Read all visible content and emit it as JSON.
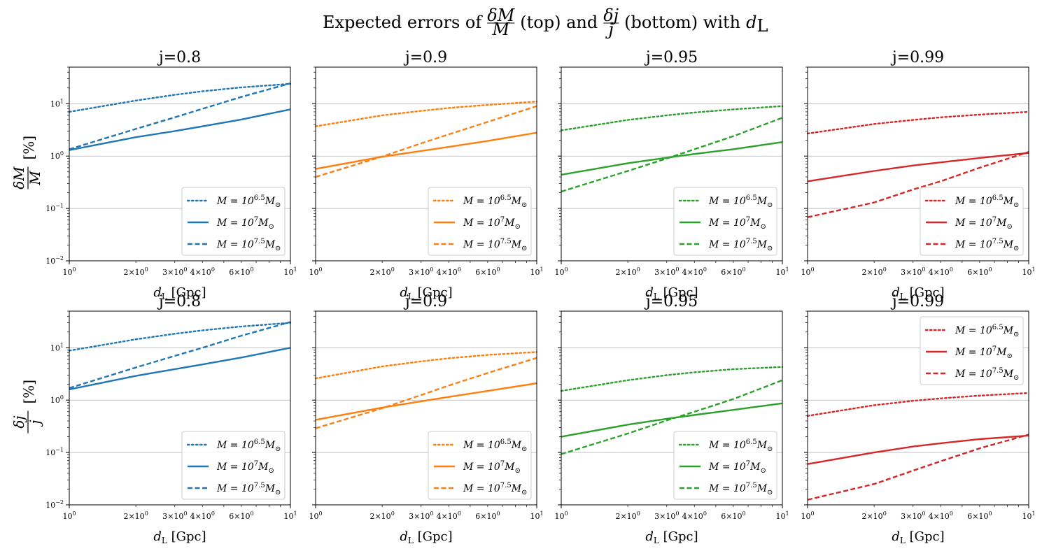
{
  "figure": {
    "title_main": "Expected errors of",
    "title_frac_top_num": "δM",
    "title_frac_top_den": "M",
    "title_mid_text": "(top) and",
    "title_frac_bot_num": "δj",
    "title_frac_bot_den": "j",
    "title_end_text": "(bottom) with",
    "title_var": "d",
    "title_var_sub": "L"
  },
  "rows": [
    {
      "ylabel_num": "δM",
      "ylabel_den": "M",
      "ylabel_unit": "[%]"
    },
    {
      "ylabel_num": "δj",
      "ylabel_den": "j",
      "ylabel_unit": "[%]"
    }
  ],
  "x_axis": {
    "label_var": "d",
    "label_sub": "L",
    "label_unit": "[Gpc]",
    "tick_labels": [
      {
        "value": 1,
        "base": "10",
        "exp": "0"
      },
      {
        "value": 2,
        "base": "2×10",
        "exp": "0"
      },
      {
        "value": 3,
        "base": "3×10",
        "exp": "0"
      },
      {
        "value": 4,
        "base": "4×10",
        "exp": "0"
      },
      {
        "value": 6,
        "base": "6×10",
        "exp": "0"
      },
      {
        "value": 10,
        "base": "10",
        "exp": "1"
      }
    ]
  },
  "y_axis": {
    "tick_labels": [
      {
        "value": 0.01,
        "base": "10",
        "exp": "−2"
      },
      {
        "value": 0.1,
        "base": "10",
        "exp": "−1"
      },
      {
        "value": 1,
        "base": "10",
        "exp": "0"
      },
      {
        "value": 10,
        "base": "10",
        "exp": "1"
      }
    ]
  },
  "legend_entries": [
    {
      "style": "dotted",
      "prefix": "M = 10",
      "exp": "6.5",
      "suffix": "M",
      "sub": "⊙"
    },
    {
      "style": "solid",
      "prefix": "M = 10",
      "exp": "7",
      "suffix": "M",
      "sub": "⊙"
    },
    {
      "style": "dashed",
      "prefix": "M = 10",
      "exp": "7.5",
      "suffix": "M",
      "sub": "⊙"
    }
  ],
  "colors": {
    "j=0.8": "#1f77b4",
    "j=0.9": "#ff7f0e",
    "j=0.95": "#2ca02c",
    "j=0.99": "#d62728",
    "grid": "#b0b0b0"
  },
  "chart_data": [
    {
      "type": "line",
      "title": "j=0.8",
      "row": "top",
      "quantity": "δM/M",
      "xlabel": "d_L [Gpc]",
      "ylabel": "δM/M [%]",
      "xscale": "log",
      "yscale": "log",
      "xlim": [
        1,
        10
      ],
      "ylim": [
        0.01,
        50
      ],
      "grid": "y-major",
      "legend": "lower right",
      "color": "#1f77b4",
      "x": [
        1,
        2,
        3,
        4,
        6,
        10
      ],
      "series": [
        {
          "name": "M=10^6.5 M_sun",
          "style": "dotted",
          "values": [
            7.0,
            11.5,
            14.8,
            17.3,
            20.5,
            24.0
          ]
        },
        {
          "name": "M=10^7 M_sun",
          "style": "solid",
          "values": [
            1.3,
            2.3,
            3.0,
            3.7,
            5.0,
            7.8
          ]
        },
        {
          "name": "M=10^7.5 M_sun",
          "style": "dashed",
          "values": [
            1.35,
            3.3,
            5.5,
            8.0,
            13.5,
            24.5
          ]
        }
      ]
    },
    {
      "type": "line",
      "title": "j=0.9",
      "row": "top",
      "quantity": "δM/M",
      "xlabel": "d_L [Gpc]",
      "ylabel": "δM/M [%]",
      "xscale": "log",
      "yscale": "log",
      "xlim": [
        1,
        10
      ],
      "ylim": [
        0.01,
        50
      ],
      "grid": "y-major",
      "legend": "lower right",
      "color": "#ff7f0e",
      "x": [
        1,
        2,
        3,
        4,
        6,
        10
      ],
      "series": [
        {
          "name": "M=10^6.5 M_sun",
          "style": "dotted",
          "values": [
            3.7,
            6.0,
            7.3,
            8.3,
            9.5,
            11.0
          ]
        },
        {
          "name": "M=10^7 M_sun",
          "style": "solid",
          "values": [
            0.57,
            0.97,
            1.25,
            1.5,
            1.95,
            2.8
          ]
        },
        {
          "name": "M=10^7.5 M_sun",
          "style": "dashed",
          "values": [
            0.4,
            0.98,
            1.75,
            2.6,
            4.5,
            9.0
          ]
        }
      ]
    },
    {
      "type": "line",
      "title": "j=0.95",
      "row": "top",
      "quantity": "δM/M",
      "xlabel": "d_L [Gpc]",
      "ylabel": "δM/M [%]",
      "xscale": "log",
      "yscale": "log",
      "xlim": [
        1,
        10
      ],
      "ylim": [
        0.01,
        50
      ],
      "grid": "y-major",
      "legend": "lower right",
      "color": "#2ca02c",
      "x": [
        1,
        2,
        3,
        4,
        6,
        10
      ],
      "series": [
        {
          "name": "M=10^6.5 M_sun",
          "style": "dotted",
          "values": [
            3.1,
            4.9,
            6.0,
            6.8,
            7.8,
            9.0
          ]
        },
        {
          "name": "M=10^7 M_sun",
          "style": "solid",
          "values": [
            0.44,
            0.73,
            0.93,
            1.1,
            1.35,
            1.85
          ]
        },
        {
          "name": "M=10^7.5 M_sun",
          "style": "dashed",
          "values": [
            0.21,
            0.52,
            0.9,
            1.35,
            2.4,
            5.4
          ]
        }
      ]
    },
    {
      "type": "line",
      "title": "j=0.99",
      "row": "top",
      "quantity": "δM/M",
      "xlabel": "d_L [Gpc]",
      "ylabel": "δM/M [%]",
      "xscale": "log",
      "yscale": "log",
      "xlim": [
        1,
        10
      ],
      "ylim": [
        0.01,
        50
      ],
      "grid": "y-major",
      "legend": "lower right",
      "color": "#d62728",
      "x": [
        1,
        2,
        3,
        4,
        6,
        10
      ],
      "series": [
        {
          "name": "M=10^6.5 M_sun",
          "style": "dotted",
          "values": [
            2.7,
            4.1,
            4.9,
            5.5,
            6.2,
            7.0
          ]
        },
        {
          "name": "M=10^7 M_sun",
          "style": "solid",
          "values": [
            0.33,
            0.52,
            0.66,
            0.76,
            0.92,
            1.15
          ]
        },
        {
          "name": "M=10^7.5 M_sun",
          "style": "dashed",
          "values": [
            0.068,
            0.13,
            0.23,
            0.33,
            0.6,
            1.2
          ]
        }
      ]
    },
    {
      "type": "line",
      "title": "j=0.8",
      "row": "bottom",
      "quantity": "δj/j",
      "xlabel": "d_L [Gpc]",
      "ylabel": "δj/j [%]",
      "xscale": "log",
      "yscale": "log",
      "xlim": [
        1,
        10
      ],
      "ylim": [
        0.01,
        50
      ],
      "grid": "y-major",
      "legend": "lower right",
      "color": "#1f77b4",
      "x": [
        1,
        2,
        3,
        4,
        6,
        10
      ],
      "series": [
        {
          "name": "M=10^6.5 M_sun",
          "style": "dotted",
          "values": [
            8.8,
            14.5,
            18.5,
            21.5,
            25.5,
            30.0
          ]
        },
        {
          "name": "M=10^7 M_sun",
          "style": "solid",
          "values": [
            1.6,
            2.9,
            3.9,
            4.8,
            6.5,
            10.0
          ]
        },
        {
          "name": "M=10^7.5 M_sun",
          "style": "dashed",
          "values": [
            1.7,
            4.2,
            7.0,
            10.0,
            17.0,
            31.0
          ]
        }
      ]
    },
    {
      "type": "line",
      "title": "j=0.9",
      "row": "bottom",
      "quantity": "δj/j",
      "xlabel": "d_L [Gpc]",
      "ylabel": "δj/j [%]",
      "xscale": "log",
      "yscale": "log",
      "xlim": [
        1,
        10
      ],
      "ylim": [
        0.01,
        50
      ],
      "grid": "y-major",
      "legend": "lower right",
      "color": "#ff7f0e",
      "x": [
        1,
        2,
        3,
        4,
        6,
        10
      ],
      "series": [
        {
          "name": "M=10^6.5 M_sun",
          "style": "dotted",
          "values": [
            2.6,
            4.4,
            5.5,
            6.3,
            7.3,
            8.3
          ]
        },
        {
          "name": "M=10^7 M_sun",
          "style": "solid",
          "values": [
            0.42,
            0.72,
            0.95,
            1.15,
            1.5,
            2.1
          ]
        },
        {
          "name": "M=10^7.5 M_sun",
          "style": "dashed",
          "values": [
            0.29,
            0.7,
            1.25,
            1.9,
            3.3,
            6.4
          ]
        }
      ]
    },
    {
      "type": "line",
      "title": "j=0.95",
      "row": "bottom",
      "quantity": "δj/j",
      "xlabel": "d_L [Gpc]",
      "ylabel": "δj/j [%]",
      "xscale": "log",
      "yscale": "log",
      "xlim": [
        1,
        10
      ],
      "ylim": [
        0.01,
        50
      ],
      "grid": "y-major",
      "legend": "lower right",
      "color": "#2ca02c",
      "x": [
        1,
        2,
        3,
        4,
        6,
        10
      ],
      "series": [
        {
          "name": "M=10^6.5 M_sun",
          "style": "dotted",
          "values": [
            1.5,
            2.4,
            3.0,
            3.4,
            3.9,
            4.3
          ]
        },
        {
          "name": "M=10^7 M_sun",
          "style": "solid",
          "values": [
            0.2,
            0.34,
            0.44,
            0.52,
            0.65,
            0.87
          ]
        },
        {
          "name": "M=10^7.5 M_sun",
          "style": "dashed",
          "values": [
            0.093,
            0.23,
            0.41,
            0.6,
            1.05,
            2.4
          ]
        }
      ]
    },
    {
      "type": "line",
      "title": "j=0.99",
      "row": "bottom",
      "quantity": "δj/j",
      "xlabel": "d_L [Gpc]",
      "ylabel": "δj/j [%]",
      "xscale": "log",
      "yscale": "log",
      "xlim": [
        1,
        10
      ],
      "ylim": [
        0.01,
        50
      ],
      "grid": "y-major",
      "legend": "upper right",
      "color": "#d62728",
      "x": [
        1,
        2,
        3,
        4,
        6,
        10
      ],
      "series": [
        {
          "name": "M=10^6.5 M_sun",
          "style": "dotted",
          "values": [
            0.5,
            0.8,
            0.97,
            1.08,
            1.22,
            1.37
          ]
        },
        {
          "name": "M=10^7 M_sun",
          "style": "solid",
          "values": [
            0.06,
            0.1,
            0.13,
            0.15,
            0.18,
            0.21
          ]
        },
        {
          "name": "M=10^7.5 M_sun",
          "style": "dashed",
          "values": [
            0.0125,
            0.025,
            0.045,
            0.068,
            0.12,
            0.22
          ]
        }
      ]
    }
  ]
}
